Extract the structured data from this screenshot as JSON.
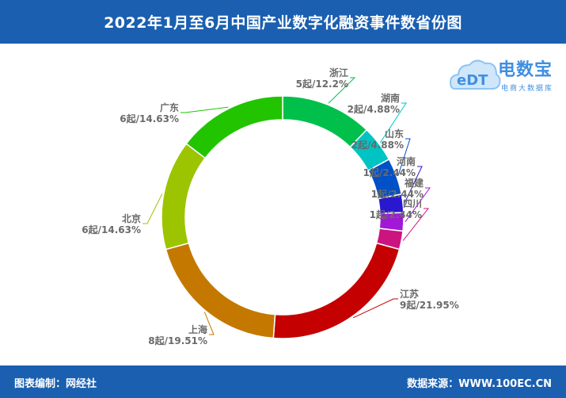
{
  "header": {
    "title": "2022年1月至6月中国产业数字化融资事件数省份图"
  },
  "footer": {
    "left": "图表编制：网经社",
    "right": "数据来源：WWW.100EC.CN"
  },
  "logo": {
    "brand": "电数宝",
    "subtitle": "电商大数据库",
    "mark": "eDT"
  },
  "chart_data": {
    "type": "pie",
    "donut": true,
    "legend": "none",
    "title": "2022年1月至6月中国产业数字化融资事件数省份图",
    "slices": [
      {
        "name": "浙江",
        "value": 5,
        "label": "5起/12.2%",
        "color": "#00c04b"
      },
      {
        "name": "湖南",
        "value": 2,
        "label": "2起/4.88%",
        "color": "#00c4c4"
      },
      {
        "name": "山东",
        "value": 2,
        "label": "2起/4.88%",
        "color": "#0050c8"
      },
      {
        "name": "河南",
        "value": 1,
        "label": "1起/2.44%",
        "color": "#2a17d0"
      },
      {
        "name": "福建",
        "value": 1,
        "label": "1起/2.44%",
        "color": "#a118d6"
      },
      {
        "name": "四川",
        "value": 1,
        "label": "1起/2.44%",
        "color": "#cc1480"
      },
      {
        "name": "江苏",
        "value": 9,
        "label": "9起/21.95%",
        "color": "#c40000"
      },
      {
        "name": "上海",
        "value": 8,
        "label": "8起/19.51%",
        "color": "#c47800"
      },
      {
        "name": "北京",
        "value": 6,
        "label": "6起/14.63%",
        "color": "#9cc400"
      },
      {
        "name": "广东",
        "value": 6,
        "label": "6起/14.63%",
        "color": "#22c400"
      }
    ]
  }
}
